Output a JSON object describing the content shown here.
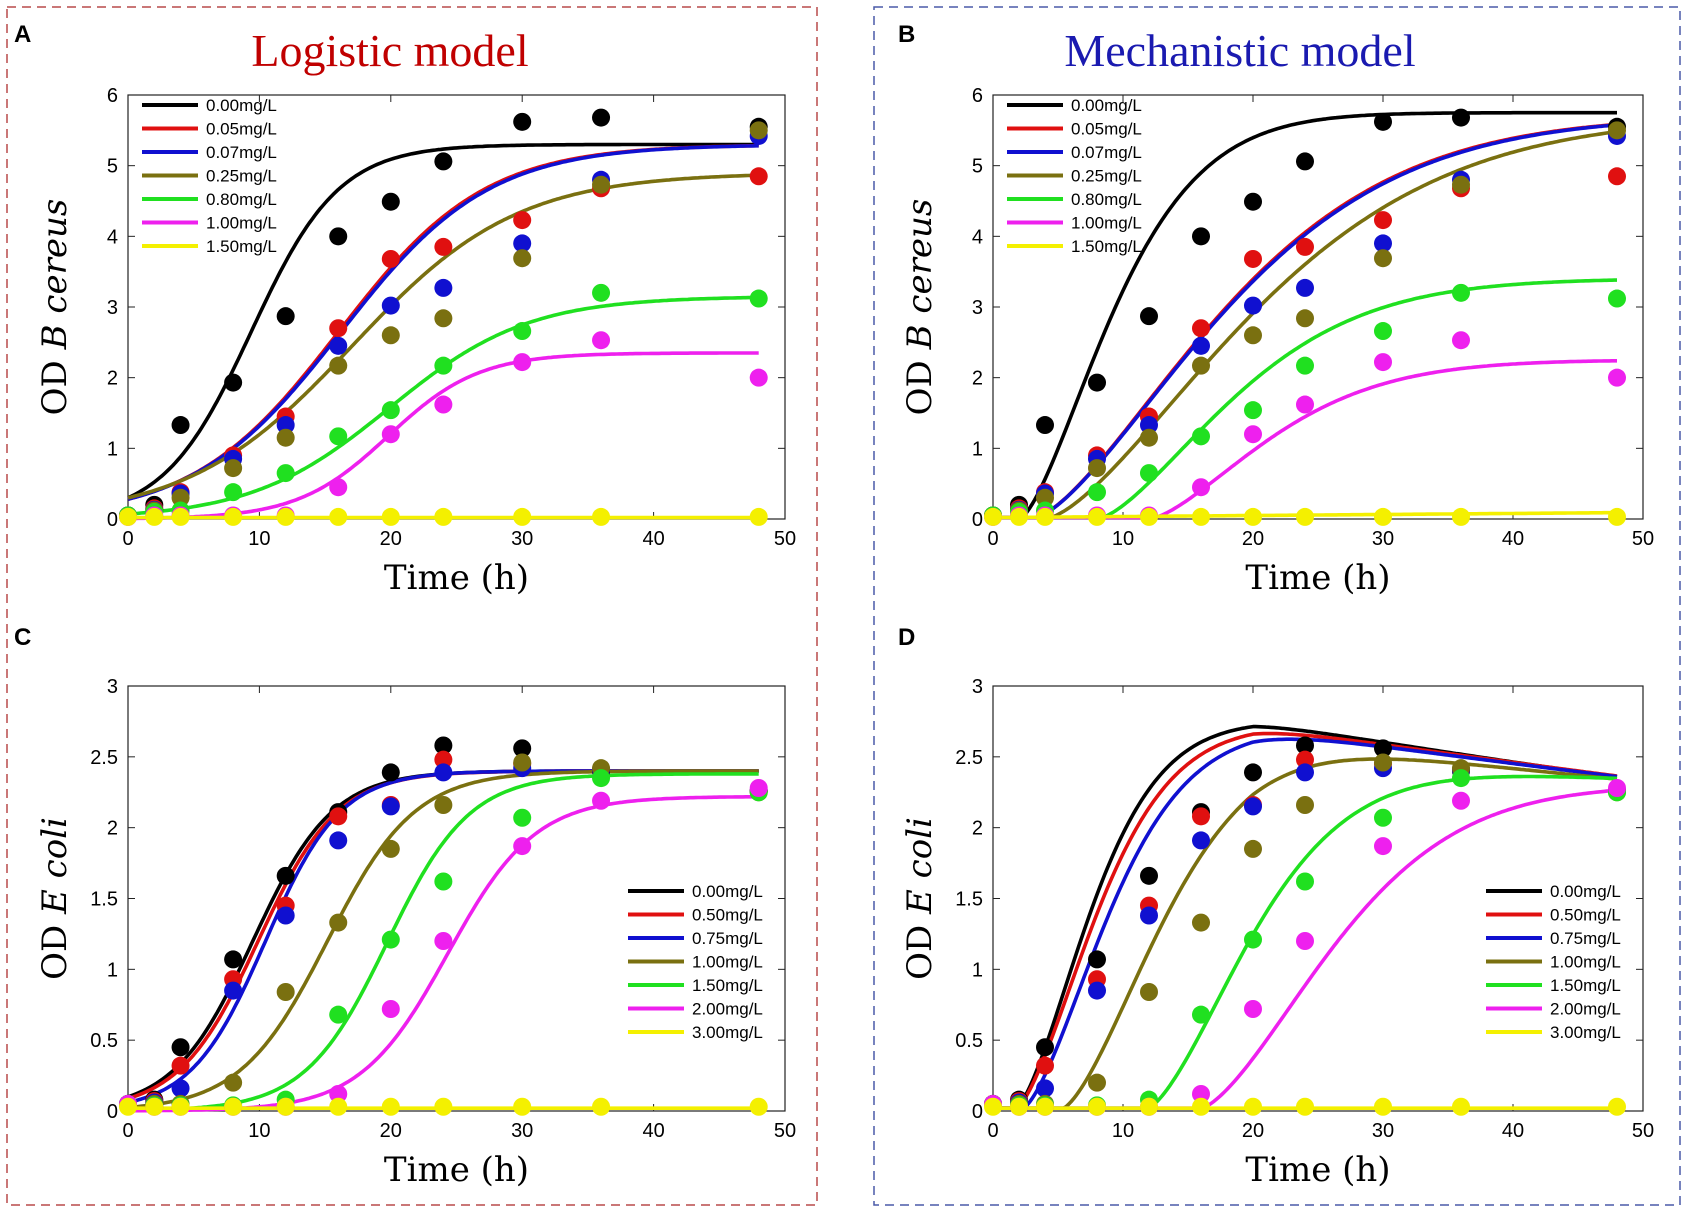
{
  "figure": {
    "panel_frame_colors": {
      "left": "#b84a4a",
      "right": "#4a5aa8"
    },
    "concentration_colors": [
      "#000000",
      "#e01010",
      "#1010d0",
      "#7a7010",
      "#20e020",
      "#ee20ee",
      "#f4f000"
    ]
  },
  "chart_data": [
    {
      "type": "line",
      "panel": "A",
      "title": "Logistic model",
      "title_color": "#c00000",
      "xlabel": "Time (h)",
      "ylabel": "OD B cereus",
      "ylabel_prefix": "OD",
      "ylabel_italic": "B cereus",
      "xlim": [
        0,
        50
      ],
      "ylim": [
        0,
        6
      ],
      "xticks": [
        0,
        10,
        20,
        30,
        40,
        50
      ],
      "yticks": [
        0,
        1,
        2,
        3,
        4,
        5,
        6
      ],
      "xtick_labels": [
        "0",
        "10",
        "20",
        "30",
        "40",
        "50"
      ],
      "ytick_labels": [
        "0",
        "1",
        "2",
        "3",
        "4",
        "5",
        "6"
      ],
      "legend_position": "top-left",
      "x": [
        0,
        2,
        4,
        8,
        12,
        16,
        20,
        24,
        30,
        36,
        48
      ],
      "series": [
        {
          "name": "0.00mg/L",
          "color": "#000000",
          "points": [
            0.05,
            0.2,
            1.33,
            1.93,
            2.87,
            4.0,
            4.49,
            5.06,
            5.62,
            5.68,
            5.55
          ],
          "fit": {
            "model": "logistic",
            "K": 5.3,
            "r": 0.3,
            "y0": 0.3
          }
        },
        {
          "name": "0.05mg/L",
          "color": "#e01010",
          "points": [
            0.05,
            0.15,
            0.38,
            0.9,
            1.45,
            2.7,
            3.68,
            3.85,
            4.23,
            4.68,
            4.85
          ],
          "fit": {
            "model": "logistic",
            "K": 5.3,
            "r": 0.18,
            "y0": 0.28
          }
        },
        {
          "name": "0.07mg/L",
          "color": "#1010d0",
          "points": [
            0.05,
            0.13,
            0.36,
            0.85,
            1.33,
            2.45,
            3.02,
            3.27,
            3.9,
            4.8,
            5.42
          ],
          "fit": {
            "model": "logistic",
            "K": 5.3,
            "r": 0.178,
            "y0": 0.28
          }
        },
        {
          "name": "0.25mg/L",
          "color": "#7a7010",
          "points": [
            0.05,
            0.12,
            0.3,
            0.72,
            1.15,
            2.17,
            2.6,
            2.84,
            3.69,
            4.73,
            5.5
          ],
          "fit": {
            "model": "logistic",
            "K": 4.9,
            "r": 0.16,
            "y0": 0.3
          }
        },
        {
          "name": "0.80mg/L",
          "color": "#20e020",
          "points": [
            0.05,
            0.1,
            0.12,
            0.38,
            0.65,
            1.17,
            1.54,
            2.17,
            2.66,
            3.2,
            3.12
          ],
          "fit": {
            "model": "logistic",
            "K": 3.15,
            "r": 0.19,
            "y0": 0.07
          }
        },
        {
          "name": "1.00mg/L",
          "color": "#ee20ee",
          "points": [
            0.03,
            0.05,
            0.05,
            0.05,
            0.05,
            0.45,
            1.2,
            1.62,
            2.22,
            2.53,
            2.0
          ],
          "fit": {
            "model": "logistic",
            "K": 2.35,
            "r": 0.29,
            "y0": 0.0075
          }
        },
        {
          "name": "1.50mg/L",
          "color": "#f4f000",
          "points": [
            0.03,
            0.03,
            0.03,
            0.03,
            0.03,
            0.03,
            0.03,
            0.03,
            0.03,
            0.03,
            0.03
          ],
          "fit": {
            "model": "flat",
            "y": 0.02
          }
        }
      ]
    },
    {
      "type": "line",
      "panel": "B",
      "title": "Mechanistic model",
      "title_color": "#1a1ab0",
      "xlabel": "Time (h)",
      "ylabel": "OD B cereus",
      "ylabel_prefix": "OD",
      "ylabel_italic": "B cereus",
      "xlim": [
        0,
        50
      ],
      "ylim": [
        0,
        6
      ],
      "xticks": [
        0,
        10,
        20,
        30,
        40,
        50
      ],
      "yticks": [
        0,
        1,
        2,
        3,
        4,
        5,
        6
      ],
      "xtick_labels": [
        "0",
        "10",
        "20",
        "30",
        "40",
        "50"
      ],
      "ytick_labels": [
        "0",
        "1",
        "2",
        "3",
        "4",
        "5",
        "6"
      ],
      "legend_position": "top-left",
      "x": [
        0,
        2,
        4,
        8,
        12,
        16,
        20,
        24,
        30,
        36,
        48
      ],
      "series": [
        {
          "name": "0.00mg/L",
          "color": "#000000",
          "points": [
            0.05,
            0.2,
            1.33,
            1.93,
            2.87,
            4.0,
            4.49,
            5.06,
            5.62,
            5.68,
            5.55
          ],
          "fit": {
            "model": "delayed",
            "K": 5.75,
            "k": 0.11,
            "t0": 2,
            "n": 1.5
          }
        },
        {
          "name": "0.05mg/L",
          "color": "#e01010",
          "points": [
            0.05,
            0.15,
            0.38,
            0.9,
            1.45,
            2.7,
            3.68,
            3.85,
            4.23,
            4.68,
            4.85
          ],
          "fit": {
            "model": "delayed",
            "K": 5.7,
            "k": 0.055,
            "t0": 3,
            "n": 1.5
          }
        },
        {
          "name": "0.07mg/L",
          "color": "#1010d0",
          "points": [
            0.05,
            0.13,
            0.36,
            0.85,
            1.33,
            2.45,
            3.02,
            3.27,
            3.9,
            4.8,
            5.42
          ],
          "fit": {
            "model": "delayed",
            "K": 5.7,
            "k": 0.0545,
            "t0": 3,
            "n": 1.5
          }
        },
        {
          "name": "0.25mg/L",
          "color": "#7a7010",
          "points": [
            0.05,
            0.12,
            0.3,
            0.72,
            1.15,
            2.17,
            2.6,
            2.84,
            3.69,
            4.73,
            5.5
          ],
          "fit": {
            "model": "delayed",
            "K": 5.7,
            "k": 0.05,
            "t0": 4,
            "n": 1.5
          }
        },
        {
          "name": "0.80mg/L",
          "color": "#20e020",
          "points": [
            0.05,
            0.1,
            0.12,
            0.38,
            0.65,
            1.17,
            1.54,
            2.17,
            2.66,
            3.2,
            3.12
          ],
          "fit": {
            "model": "delayed",
            "K": 3.4,
            "k": 0.075,
            "t0": 8,
            "n": 1.5
          }
        },
        {
          "name": "1.00mg/L",
          "color": "#ee20ee",
          "points": [
            0.03,
            0.05,
            0.05,
            0.05,
            0.05,
            0.45,
            1.2,
            1.62,
            2.22,
            2.53,
            2.0
          ],
          "fit": {
            "model": "delayed",
            "K": 2.25,
            "k": 0.085,
            "t0": 12,
            "n": 1.5
          }
        },
        {
          "name": "1.50mg/L",
          "color": "#f4f000",
          "points": [
            0.03,
            0.03,
            0.03,
            0.03,
            0.03,
            0.03,
            0.03,
            0.03,
            0.03,
            0.03,
            0.03
          ],
          "fit": {
            "model": "ramp",
            "y0": 0.02,
            "y1": 0.09
          }
        }
      ]
    },
    {
      "type": "line",
      "panel": "C",
      "title": "",
      "xlabel": "Time (h)",
      "ylabel": "OD E coli",
      "ylabel_prefix": "OD",
      "ylabel_italic": "E coli",
      "xlim": [
        0,
        50
      ],
      "ylim": [
        0,
        3
      ],
      "xticks": [
        0,
        10,
        20,
        30,
        40,
        50
      ],
      "yticks": [
        0,
        0.5,
        1,
        1.5,
        2,
        2.5,
        3
      ],
      "xtick_labels": [
        "0",
        "10",
        "20",
        "30",
        "40",
        "50"
      ],
      "ytick_labels": [
        "0",
        "0.5",
        "1",
        "1.5",
        "2",
        "2.5",
        "3"
      ],
      "legend_position": "bottom-right",
      "x": [
        0,
        2,
        4,
        8,
        12,
        16,
        20,
        24,
        30,
        36,
        48
      ],
      "series": [
        {
          "name": "0.00mg/L",
          "color": "#000000",
          "points": [
            0.05,
            0.08,
            0.45,
            1.07,
            1.66,
            2.11,
            2.39,
            2.58,
            2.56,
            2.4,
            2.26
          ],
          "fit": {
            "model": "logistic",
            "K": 2.4,
            "r": 0.33,
            "y0": 0.1
          }
        },
        {
          "name": "0.50mg/L",
          "color": "#e01010",
          "points": [
            0.05,
            0.07,
            0.32,
            0.93,
            1.45,
            2.08,
            2.16,
            2.48,
            2.45,
            2.41,
            2.26
          ],
          "fit": {
            "model": "logistic",
            "K": 2.4,
            "r": 0.33,
            "y0": 0.088
          }
        },
        {
          "name": "0.75mg/L",
          "color": "#1010d0",
          "points": [
            0.05,
            0.06,
            0.16,
            0.85,
            1.38,
            1.91,
            2.15,
            2.39,
            2.42,
            2.41,
            2.26
          ],
          "fit": {
            "model": "logistic",
            "K": 2.4,
            "r": 0.35,
            "y0": 0.06
          }
        },
        {
          "name": "1.00mg/L",
          "color": "#7a7010",
          "points": [
            0.05,
            0.05,
            0.05,
            0.2,
            0.84,
            1.33,
            1.85,
            2.16,
            2.46,
            2.42,
            2.25
          ],
          "fit": {
            "model": "logistic",
            "K": 2.4,
            "r": 0.3,
            "y0": 0.025
          }
        },
        {
          "name": "1.50mg/L",
          "color": "#20e020",
          "points": [
            0.05,
            0.04,
            0.04,
            0.04,
            0.08,
            0.68,
            1.21,
            1.62,
            2.07,
            2.35,
            2.25
          ],
          "fit": {
            "model": "logistic",
            "K": 2.38,
            "r": 0.32,
            "y0": 0.0043
          }
        },
        {
          "name": "2.00mg/L",
          "color": "#ee20ee",
          "points": [
            0.05,
            0.03,
            0.03,
            0.03,
            0.03,
            0.12,
            0.72,
            1.2,
            1.87,
            2.19,
            2.28
          ],
          "fit": {
            "model": "logistic",
            "K": 2.22,
            "r": 0.3,
            "y0": 0.0015
          }
        },
        {
          "name": "3.00mg/L",
          "color": "#f4f000",
          "points": [
            0.03,
            0.03,
            0.03,
            0.03,
            0.03,
            0.03,
            0.03,
            0.03,
            0.03,
            0.03,
            0.03
          ],
          "fit": {
            "model": "flat",
            "y": 0.02
          }
        }
      ]
    },
    {
      "type": "line",
      "panel": "D",
      "title": "",
      "xlabel": "Time (h)",
      "ylabel": "OD E coli",
      "ylabel_prefix": "OD",
      "ylabel_italic": "E coli",
      "xlim": [
        0,
        50
      ],
      "ylim": [
        0,
        3
      ],
      "xticks": [
        0,
        10,
        20,
        30,
        40,
        50
      ],
      "yticks": [
        0,
        0.5,
        1,
        1.5,
        2,
        2.5,
        3
      ],
      "xtick_labels": [
        "0",
        "10",
        "20",
        "30",
        "40",
        "50"
      ],
      "ytick_labels": [
        "0",
        "0.5",
        "1",
        "1.5",
        "2",
        "2.5",
        "3"
      ],
      "legend_position": "bottom-right",
      "x": [
        0,
        2,
        4,
        8,
        12,
        16,
        20,
        24,
        30,
        36,
        48
      ],
      "series": [
        {
          "name": "0.00mg/L",
          "color": "#000000",
          "points": [
            0.05,
            0.08,
            0.45,
            1.07,
            1.66,
            2.11,
            2.39,
            2.58,
            2.56,
            2.4,
            2.26
          ],
          "fit": {
            "model": "delayed",
            "K": 2.75,
            "k": 0.135,
            "t0": 1.5,
            "n": 1.6,
            "decay": 0.0055
          }
        },
        {
          "name": "0.50mg/L",
          "color": "#e01010",
          "points": [
            0.05,
            0.07,
            0.32,
            0.93,
            1.45,
            2.08,
            2.16,
            2.48,
            2.45,
            2.41,
            2.26
          ],
          "fit": {
            "model": "delayed",
            "K": 2.72,
            "k": 0.125,
            "t0": 1.5,
            "n": 1.6,
            "decay": 0.005
          }
        },
        {
          "name": "0.75mg/L",
          "color": "#1010d0",
          "points": [
            0.05,
            0.06,
            0.16,
            0.85,
            1.38,
            1.91,
            2.15,
            2.39,
            2.42,
            2.41,
            2.26
          ],
          "fit": {
            "model": "delayed",
            "K": 2.7,
            "k": 0.118,
            "t0": 2,
            "n": 1.6,
            "decay": 0.0048
          }
        },
        {
          "name": "1.00mg/L",
          "color": "#7a7010",
          "points": [
            0.05,
            0.05,
            0.05,
            0.2,
            0.84,
            1.33,
            1.85,
            2.16,
            2.46,
            2.42,
            2.25
          ],
          "fit": {
            "model": "delayed",
            "K": 2.62,
            "k": 0.1,
            "t0": 5,
            "n": 1.6,
            "decay": 0.004
          }
        },
        {
          "name": "1.50mg/L",
          "color": "#20e020",
          "points": [
            0.05,
            0.04,
            0.04,
            0.04,
            0.08,
            0.68,
            1.21,
            1.62,
            2.07,
            2.35,
            2.25
          ],
          "fit": {
            "model": "delayed",
            "K": 2.45,
            "k": 0.095,
            "t0": 11.5,
            "n": 1.6,
            "decay": 0.0015
          }
        },
        {
          "name": "2.00mg/L",
          "color": "#ee20ee",
          "points": [
            0.05,
            0.03,
            0.03,
            0.03,
            0.03,
            0.12,
            0.72,
            1.2,
            1.87,
            2.19,
            2.28
          ],
          "fit": {
            "model": "delayed",
            "K": 2.3,
            "k": 0.075,
            "t0": 15.5,
            "n": 1.6,
            "decay": 0
          }
        },
        {
          "name": "3.00mg/L",
          "color": "#f4f000",
          "points": [
            0.03,
            0.03,
            0.03,
            0.03,
            0.03,
            0.03,
            0.03,
            0.03,
            0.03,
            0.03,
            0.03
          ],
          "fit": {
            "model": "flat",
            "y": 0.02
          }
        }
      ]
    }
  ]
}
